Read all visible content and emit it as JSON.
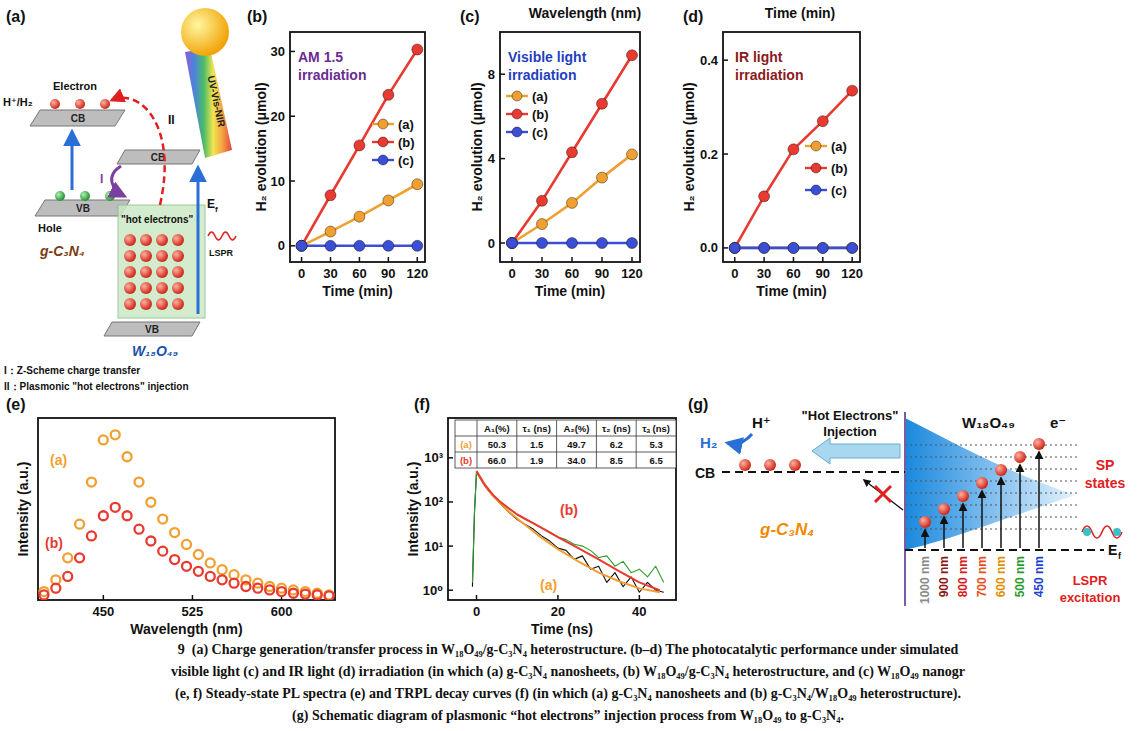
{
  "chart_data": [
    {
      "type": "line",
      "label": "(b)",
      "annotation": "AM 1.5 irradiation",
      "x": [
        0,
        30,
        60,
        90,
        120
      ],
      "series": [
        {
          "name": "(a)",
          "color": "#f0a030",
          "values": [
            0,
            2.2,
            4.5,
            7,
            9.5
          ]
        },
        {
          "name": "(b)",
          "color": "#e83a30",
          "values": [
            0,
            7.8,
            15.5,
            23.3,
            30.3
          ]
        },
        {
          "name": "(c)",
          "color": "#3a4fd6",
          "values": [
            0,
            0,
            0,
            0,
            0
          ]
        }
      ],
      "xlim": [
        -12,
        128
      ],
      "ylim": [
        -2.5,
        33
      ],
      "xticks": [
        0,
        30,
        60,
        90,
        120
      ],
      "yticks": [
        0,
        10,
        20,
        30
      ],
      "x_label": "Time (min)",
      "y_label": "H₂ evolution (μmol)",
      "legend": "right",
      "marker": "circle",
      "line_style": "solid"
    },
    {
      "type": "line",
      "label": "(c)",
      "annotation": "Visible light irradiation",
      "x": [
        0,
        30,
        60,
        90,
        120
      ],
      "series": [
        {
          "name": "(a)",
          "color": "#f0a030",
          "values": [
            0,
            0.9,
            1.9,
            3.1,
            4.2
          ]
        },
        {
          "name": "(b)",
          "color": "#e83a30",
          "values": [
            0,
            2,
            4.3,
            6.6,
            8.9
          ]
        },
        {
          "name": "(c)",
          "color": "#3a4fd6",
          "values": [
            0,
            0,
            0,
            0,
            0
          ]
        }
      ],
      "xlim": [
        -12,
        128
      ],
      "ylim": [
        -0.9,
        10
      ],
      "xticks": [
        0,
        30,
        60,
        90,
        120
      ],
      "yticks": [
        0,
        4,
        8
      ],
      "x_label": "Time (min)",
      "y_label": "H₂ evolution (μmol)",
      "legend": "left",
      "marker": "circle",
      "line_style": "solid"
    },
    {
      "type": "line",
      "label": "(d)",
      "annotation": "IR light irradiation",
      "x": [
        0,
        30,
        60,
        90,
        120
      ],
      "series": [
        {
          "name": "(a)",
          "color": "#f0a030",
          "values": [
            0,
            0,
            0,
            0,
            0
          ]
        },
        {
          "name": "(b)",
          "color": "#e83a30",
          "values": [
            0,
            0.11,
            0.21,
            0.27,
            0.335
          ]
        },
        {
          "name": "(c)",
          "color": "#3a4fd6",
          "values": [
            0,
            0,
            0,
            0,
            0
          ]
        }
      ],
      "xlim": [
        -12,
        128
      ],
      "ylim": [
        -0.03,
        0.46
      ],
      "xticks": [
        0,
        30,
        60,
        90,
        120
      ],
      "yticks": [
        {
          "value": 0,
          "label": "0.0"
        },
        {
          "value": 0.2,
          "label": "0.2"
        },
        {
          "value": 0.4,
          "label": "0.4"
        }
      ],
      "x_label": "Time (min)",
      "y_label": "H₂ evolution (μmol)",
      "legend": "right",
      "marker": "circle",
      "line_style": "solid"
    },
    {
      "type": "line",
      "label": "(e)",
      "x": [
        400,
        410,
        420,
        430,
        440,
        450,
        460,
        470,
        480,
        490,
        500,
        510,
        520,
        530,
        540,
        550,
        560,
        570,
        580,
        590,
        600,
        610,
        620,
        630,
        640
      ],
      "series": [
        {
          "name": "(a)",
          "color": "#f0a030",
          "values": [
            0.05,
            0.12,
            0.25,
            0.45,
            0.7,
            0.95,
            0.98,
            0.85,
            0.7,
            0.58,
            0.48,
            0.4,
            0.33,
            0.27,
            0.22,
            0.18,
            0.15,
            0.12,
            0.1,
            0.08,
            0.07,
            0.06,
            0.05,
            0.04,
            0.03
          ]
        },
        {
          "name": "(b)",
          "color": "#e83a30",
          "values": [
            0.03,
            0.07,
            0.14,
            0.25,
            0.38,
            0.5,
            0.55,
            0.5,
            0.42,
            0.35,
            0.29,
            0.24,
            0.2,
            0.17,
            0.14,
            0.12,
            0.1,
            0.08,
            0.07,
            0.06,
            0.05,
            0.04,
            0.035,
            0.03,
            0.025
          ]
        }
      ],
      "xlim": [
        395,
        645
      ],
      "ylim": [
        0,
        1.08
      ],
      "xticks": [
        450,
        525,
        600
      ],
      "tick_labels": "x",
      "x_label": "Wavelength (nm)",
      "y_label": "Intensity (a.u.)",
      "legend": "inline",
      "marker": "ring",
      "line_style": "none"
    },
    {
      "type": "line",
      "label": "(f)",
      "log": "y",
      "series": [
        {
          "color": "#111111",
          "x": [
            -1,
            -0.5,
            0,
            1,
            2,
            3,
            4,
            5,
            6,
            8,
            10,
            12,
            14,
            16,
            18,
            20,
            22,
            24,
            26,
            28,
            30,
            32,
            34,
            36,
            38,
            40,
            42,
            44,
            46
          ],
          "values": [
            1.2,
            55,
            470,
            330,
            235,
            175,
            140,
            112,
            88,
            58,
            40,
            31,
            24,
            17,
            13,
            9,
            8,
            5,
            6,
            3,
            3.5,
            1.5,
            2.5,
            1.2,
            2,
            0.9,
            1.5,
            1,
            0.9
          ]
        },
        {
          "color": "#2ca02c",
          "x": [
            -1,
            -0.5,
            0,
            1,
            2,
            3,
            4,
            5,
            6,
            8,
            10,
            12,
            14,
            16,
            18,
            20,
            22,
            24,
            26,
            28,
            30,
            32,
            34,
            36,
            38,
            40,
            42,
            44,
            46
          ],
          "values": [
            1.5,
            60,
            480,
            350,
            245,
            185,
            145,
            120,
            98,
            70,
            52,
            40,
            33,
            26,
            21,
            16,
            14,
            11,
            10,
            8,
            5.5,
            6,
            3.5,
            4.5,
            2.5,
            3,
            2,
            3.5,
            1.5
          ]
        },
        {
          "name": "(a)",
          "color": "#f0a030",
          "x": [
            0,
            2,
            4,
            6,
            8,
            10,
            15,
            20,
            25,
            30,
            35,
            40,
            45
          ],
          "values": [
            500,
            240,
            140,
            90,
            60,
            42,
            18,
            8.5,
            4.5,
            2.5,
            1.6,
            1.1,
            0.9
          ]
        },
        {
          "name": "(b)",
          "color": "#e83a30",
          "x": [
            0,
            2,
            4,
            6,
            8,
            10,
            15,
            20,
            25,
            30,
            35,
            40,
            45
          ],
          "values": [
            500,
            250,
            146,
            98,
            71,
            52,
            29,
            16,
            9,
            5,
            2.7,
            1.5,
            1.0
          ]
        }
      ],
      "xlim": [
        -7,
        49
      ],
      "ylim": [
        0.6,
        8000
      ],
      "xticks": [
        0,
        20,
        40
      ],
      "yticks": [
        {
          "value": 1,
          "label": "10⁰"
        },
        {
          "value": 10,
          "label": "10¹"
        },
        {
          "value": 100,
          "label": "10²"
        },
        {
          "value": 1000,
          "label": "10³"
        }
      ],
      "x_label": "Time (ns)",
      "y_label": "Intensity (a.u.)",
      "legend": "inline",
      "marker": "none",
      "line_style": "solid",
      "table": {
        "columns": [
          "A₁(%)",
          "τ₁ (ns)",
          "A₂(%)",
          "τ₂ (ns)",
          "τₐ (ns)"
        ],
        "rows": [
          {
            "label": "(a)",
            "cells": [
              "50.3",
              "1.5",
              "49.7",
              "6.2",
              "5.3"
            ]
          },
          {
            "label": "(b)",
            "cells": [
              "66.0",
              "1.9",
              "34.0",
              "8.5",
              "6.5"
            ]
          }
        ]
      }
    }
  ],
  "diagram_a": {
    "label": "(a)",
    "light": "UV-Vis-NIR",
    "electron": "Electron",
    "proton": "H⁺/H₂",
    "cb": "CB",
    "vb": "VB",
    "hole": "Hole",
    "gcn": "g-C₃N₄",
    "route_1": "I",
    "route_2": "II",
    "ef": {
      "main": "E",
      "sub": "f"
    },
    "lspr": "LSPR",
    "hot": "\"hot electrons\"",
    "wo": "W₁₈O₄₉",
    "notes": [
      "I：Z-Scheme charge transfer",
      "II：Plasmonic \"hot electrons\" injection"
    ]
  },
  "diagram_g": {
    "label": "(g)",
    "proton": "H⁺",
    "hydrogen": "H₂",
    "injection": "\"Hot Electrons\" Injection",
    "cb": "CB",
    "gcn": "g-C₃N₄",
    "wo": "W₁₈O₄₉",
    "electron": "e⁻",
    "states": "SP states",
    "ef": {
      "main": "E",
      "sub": "f"
    },
    "wavelengths": [
      "1000 nm",
      "900 nm",
      "800 nm",
      "700 nm",
      "600 nm",
      "500 nm",
      "450 nm"
    ],
    "colors": [
      "#8a8a8a",
      "#8b1a1a",
      "#d62020",
      "#e8501e",
      "#e09000",
      "#2a9a2a",
      "#2040d0"
    ],
    "excitation": "LSPR excitation"
  },
  "extra_labels": [
    "Wavelength (nm)",
    "Time (min)"
  ],
  "caption": [
    "9  (a) Charge generation/transfer process in W₁₈O₄₉/g-C₃N₄ heterostructure. (b–d) The photocatalytic performance under simulated",
    "visible light (c) and IR light (d) irradiation (in which (a) g-C₃N₄ nanosheets, (b) W₁₈O₄₉/g-C₃N₄ heterostructure, and (c) W₁₈O₄₉ nanogr",
    "(e, f) Steady-state PL spectra (e) and TRPL decay curves (f) (in which (a) g-C₃N₄ nanosheets and (b) g-C₃N₄/W₁₈O₄₉ heterostructure).",
    "(g) Schematic diagram of plasmonic “hot electrons” injection process from W₁₈O₄₉ to g-C₃N₄."
  ]
}
